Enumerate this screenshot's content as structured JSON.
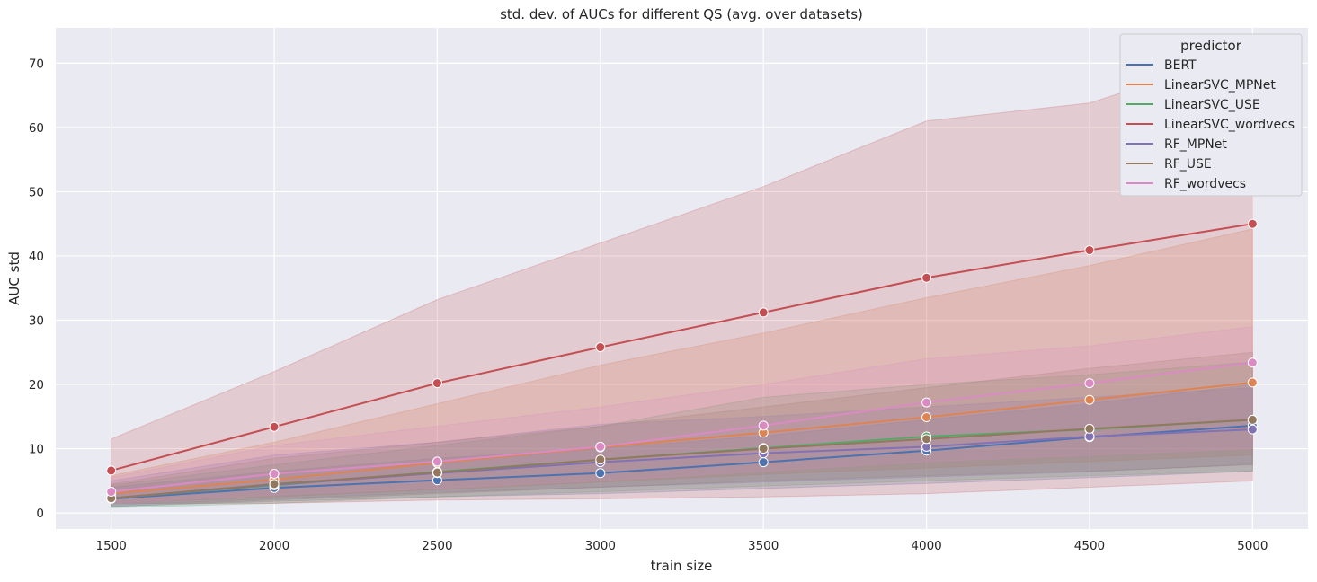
{
  "chart_data": {
    "type": "line",
    "title": "std. dev. of AUCs for different QS (avg. over datasets)",
    "xlabel": "train size",
    "ylabel": "AUC std",
    "xlim": [
      1330,
      5170
    ],
    "ylim": [
      -2.5,
      75.5
    ],
    "x_ticks": [
      1500,
      2000,
      2500,
      3000,
      3500,
      4000,
      4500,
      5000
    ],
    "x_tick_labels": [
      "1500",
      "2000",
      "2500",
      "3000",
      "3500",
      "4000",
      "4500",
      "5000"
    ],
    "y_ticks": [
      0,
      10,
      20,
      30,
      40,
      50,
      60,
      70
    ],
    "y_tick_labels": [
      "0",
      "10",
      "20",
      "30",
      "40",
      "50",
      "60",
      "70"
    ],
    "grid": true,
    "background": "#eaeaf2",
    "legend": {
      "title": "predictor",
      "placement": "top-right"
    },
    "x": [
      1500,
      2000,
      2500,
      3000,
      3500,
      4000,
      4500,
      5000
    ],
    "series": [
      {
        "name": "BERT",
        "color": "#4c72b0",
        "values": [
          2.2,
          3.9,
          5.1,
          6.2,
          7.9,
          9.7,
          11.8,
          13.6
        ],
        "ci_low": [
          1.0,
          1.8,
          2.5,
          3.0,
          3.8,
          4.6,
          5.5,
          6.5
        ],
        "ci_high": [
          4.0,
          6.5,
          8.5,
          10.0,
          12.0,
          14.5,
          17.0,
          20.0
        ]
      },
      {
        "name": "LinearSVC_MPNet",
        "color": "#dd8452",
        "values": [
          3.0,
          5.2,
          7.8,
          10.2,
          12.5,
          14.9,
          17.6,
          20.3
        ],
        "ci_low": [
          1.5,
          2.5,
          3.6,
          4.8,
          6.0,
          7.0,
          8.0,
          9.0
        ],
        "ci_high": [
          5.8,
          11.0,
          17.0,
          23.0,
          28.0,
          33.5,
          38.5,
          44.2
        ]
      },
      {
        "name": "LinearSVC_USE",
        "color": "#55a868",
        "values": [
          2.3,
          4.3,
          6.4,
          8.3,
          10.1,
          11.9,
          13.0,
          14.5
        ],
        "ci_low": [
          0.8,
          1.5,
          2.5,
          3.3,
          4.2,
          5.0,
          5.8,
          6.5
        ],
        "ci_high": [
          4.3,
          7.5,
          10.5,
          13.5,
          18.0,
          20.0,
          21.5,
          23.5
        ]
      },
      {
        "name": "LinearSVC_wordvecs",
        "color": "#c44e52",
        "values": [
          6.6,
          13.4,
          20.2,
          25.8,
          31.2,
          36.6,
          40.9,
          45.0
        ],
        "ci_low": [
          1.5,
          1.5,
          2.0,
          2.2,
          2.5,
          3.0,
          4.0,
          5.0
        ],
        "ci_high": [
          11.5,
          22.0,
          33.2,
          42.0,
          50.8,
          61.0,
          63.8,
          72.0
        ]
      },
      {
        "name": "RF_MPNet",
        "color": "#8172b3",
        "values": [
          2.3,
          4.4,
          6.2,
          7.9,
          9.3,
          10.3,
          11.9,
          13.0
        ],
        "ci_low": [
          1.2,
          2.2,
          3.2,
          4.0,
          4.8,
          5.6,
          6.4,
          7.6
        ],
        "ci_high": [
          5.0,
          9.0,
          11.0,
          13.8,
          15.0,
          16.5,
          18.0,
          19.5
        ]
      },
      {
        "name": "RF_USE",
        "color": "#937860",
        "values": [
          2.3,
          4.5,
          6.3,
          8.3,
          10.0,
          11.5,
          13.1,
          14.5
        ],
        "ci_low": [
          1.0,
          2.0,
          3.0,
          4.0,
          5.0,
          5.8,
          6.5,
          7.5
        ],
        "ci_high": [
          4.5,
          8.5,
          11.0,
          13.5,
          16.5,
          19.5,
          22.5,
          25.0
        ]
      },
      {
        "name": "RF_wordvecs",
        "color": "#da8bc3",
        "values": [
          3.3,
          6.1,
          8.0,
          10.3,
          13.6,
          17.2,
          20.2,
          23.4
        ],
        "ci_low": [
          1.5,
          2.8,
          3.8,
          5.0,
          6.5,
          8.0,
          9.0,
          10.0
        ],
        "ci_high": [
          5.5,
          10.5,
          13.5,
          16.5,
          20.0,
          24.0,
          26.0,
          29.0
        ]
      }
    ]
  }
}
